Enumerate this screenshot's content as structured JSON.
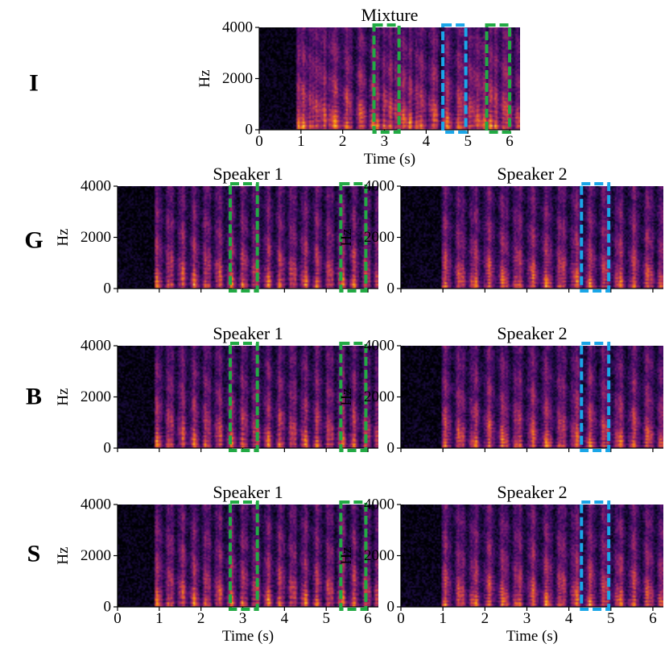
{
  "chart_data": {
    "type": "heatmap",
    "description_visible": "spectrogram grid",
    "colormap": [
      "#000004",
      "#1b0c41",
      "#4a0c6b",
      "#781c6d",
      "#a52c60",
      "#cf4446",
      "#ed6925",
      "#fb9b06",
      "#f7d13d",
      "#fcffa4"
    ],
    "frequency_range_hz": [
      0,
      4000
    ],
    "time_range_s": [
      0,
      6.25
    ],
    "y_ticks": [
      "0",
      "2000",
      "4000"
    ],
    "y_tick_values": [
      0,
      2000,
      4000
    ],
    "x_ticks": [
      "0",
      "1",
      "2",
      "3",
      "4",
      "5",
      "6"
    ],
    "x_tick_values": [
      0,
      1,
      2,
      3,
      4,
      5,
      6
    ],
    "ylabel": "Hz",
    "xlabel": "Time (s)",
    "highlight_colors": {
      "green": "#22aa44",
      "blue": "#1aa6e8"
    },
    "rows": [
      {
        "label": "I",
        "panels": [
          {
            "title": "Mixture",
            "speaker": "mix",
            "show_xticks": true,
            "show_xlabel": true,
            "highlights": [
              {
                "color": "green",
                "t_start": 2.75,
                "t_end": 3.35
              },
              {
                "color": "blue",
                "t_start": 4.4,
                "t_end": 4.95
              },
              {
                "color": "green",
                "t_start": 5.45,
                "t_end": 6.0
              }
            ]
          }
        ]
      },
      {
        "label": "G",
        "panels": [
          {
            "title": "Speaker 1",
            "speaker": "s1",
            "show_xticks": false,
            "show_xlabel": false,
            "highlights": [
              {
                "color": "green",
                "t_start": 2.7,
                "t_end": 3.35
              },
              {
                "color": "green",
                "t_start": 5.35,
                "t_end": 5.95
              }
            ]
          },
          {
            "title": "Speaker 2",
            "speaker": "s2",
            "show_xticks": false,
            "show_xlabel": false,
            "highlights": [
              {
                "color": "blue",
                "t_start": 4.3,
                "t_end": 4.95
              }
            ]
          }
        ]
      },
      {
        "label": "B",
        "panels": [
          {
            "title": "Speaker 1",
            "speaker": "s1",
            "show_xticks": false,
            "show_xlabel": false,
            "highlights": [
              {
                "color": "green",
                "t_start": 2.7,
                "t_end": 3.35
              },
              {
                "color": "green",
                "t_start": 5.35,
                "t_end": 5.95
              }
            ]
          },
          {
            "title": "Speaker 2",
            "speaker": "s2",
            "show_xticks": false,
            "show_xlabel": false,
            "highlights": [
              {
                "color": "blue",
                "t_start": 4.3,
                "t_end": 4.95
              }
            ]
          }
        ]
      },
      {
        "label": "S",
        "panels": [
          {
            "title": "Speaker 1",
            "speaker": "s1",
            "show_xticks": true,
            "show_xlabel": true,
            "highlights": [
              {
                "color": "green",
                "t_start": 2.7,
                "t_end": 3.35
              },
              {
                "color": "green",
                "t_start": 5.35,
                "t_end": 5.95
              }
            ]
          },
          {
            "title": "Speaker 2",
            "speaker": "s2",
            "show_xticks": true,
            "show_xlabel": true,
            "highlights": [
              {
                "color": "blue",
                "t_start": 4.3,
                "t_end": 4.95
              }
            ]
          }
        ]
      }
    ]
  }
}
